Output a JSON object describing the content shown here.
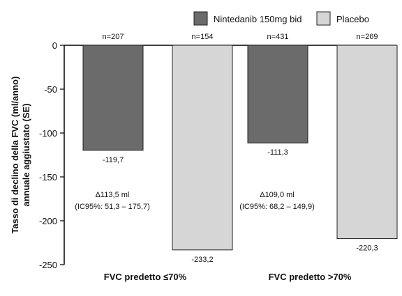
{
  "chart_data": {
    "type": "bar",
    "ylabel_lines": [
      "Tasso di declino della FVC (ml/anno)",
      "annuale aggiustato (SE)"
    ],
    "ylim": [
      -250,
      0
    ],
    "yticks": [
      0,
      -50,
      -100,
      -150,
      -200,
      -250
    ],
    "grid": false,
    "legend_position": "top-right",
    "categories": [
      "FVC predetto ≤70%",
      "FVC predetto >70%"
    ],
    "series": [
      {
        "name": "Nintedanib 150mg bid",
        "color": "#6b6b6b",
        "values": [
          -119.7,
          -111.3
        ],
        "value_labels": [
          "-119,7",
          "-111,3"
        ],
        "n_labels": [
          "n=207",
          "n=431"
        ]
      },
      {
        "name": "Placebo",
        "color": "#d6d6d6",
        "values": [
          -233.2,
          -220.3
        ],
        "value_labels": [
          "-233,2",
          "-220,3"
        ],
        "n_labels": [
          "n=154",
          "n=269"
        ]
      }
    ],
    "annotations": [
      {
        "lines": [
          "Δ113,5 ml",
          "(IC95%: 51,3 – 175,7)"
        ]
      },
      {
        "lines": [
          "Δ109,0 ml",
          "(IC95%: 68,2 – 149,9)"
        ]
      }
    ]
  }
}
